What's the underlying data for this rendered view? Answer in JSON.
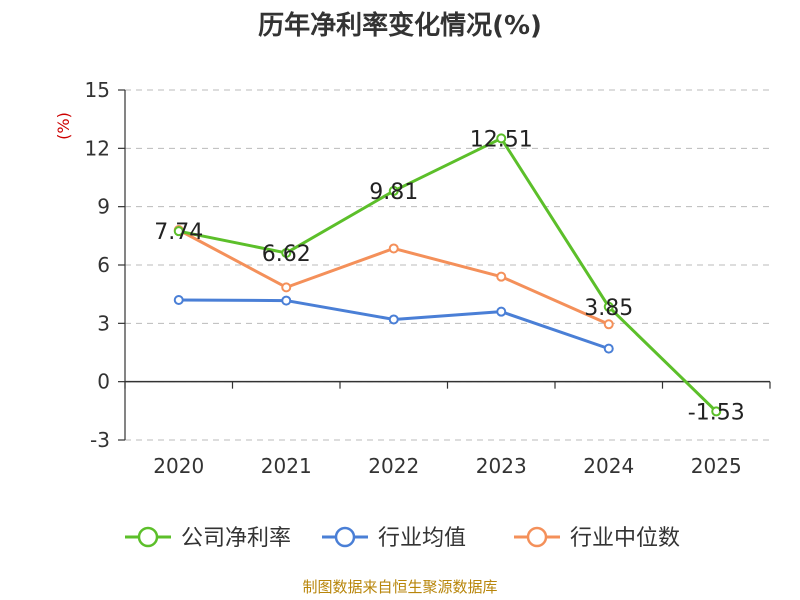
{
  "title": "历年净利率变化情况(%)",
  "source": "制图数据来自恒生聚源数据库",
  "chart_data": {
    "type": "line",
    "title": "历年净利率变化情况(%)",
    "ylabel": "(%)",
    "ylim": [
      -3,
      15
    ],
    "yticks": [
      -3,
      0,
      3,
      6,
      9,
      12,
      15
    ],
    "categories": [
      "2020",
      "2021",
      "2022",
      "2023",
      "2024",
      "2025"
    ],
    "grid": true,
    "legend_position": "bottom",
    "series": [
      {
        "name": "公司净利率",
        "color": "#5cbf2a",
        "values": [
          7.74,
          6.62,
          9.81,
          12.51,
          3.85,
          -1.53
        ],
        "labels": [
          "7.74",
          "6.62",
          "9.81",
          "12.51",
          "3.85",
          "-1.53"
        ]
      },
      {
        "name": "行业均值",
        "color": "#4a7fd6",
        "values": [
          4.2,
          4.17,
          3.2,
          3.6,
          1.7,
          null
        ]
      },
      {
        "name": "行业中位数",
        "color": "#f4905a",
        "values": [
          7.8,
          4.85,
          6.85,
          5.4,
          2.95,
          null
        ]
      }
    ]
  }
}
